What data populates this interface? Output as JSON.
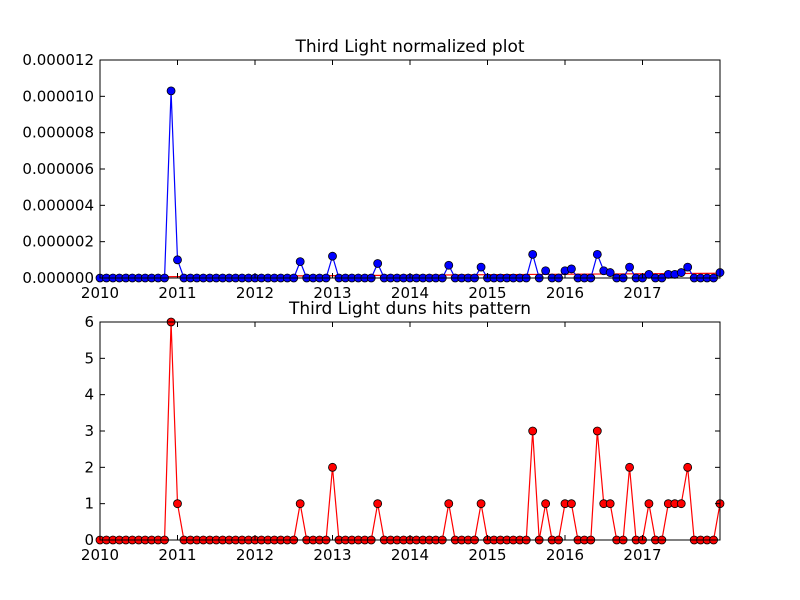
{
  "chart_data": [
    {
      "type": "line",
      "title": "Third Light normalized plot",
      "xlabel": "",
      "ylabel": "",
      "xlim": [
        2010.0,
        2018.0
      ],
      "ylim": [
        0,
        1.2e-05
      ],
      "grid": false,
      "x_ticks": [
        {
          "value": 2010,
          "label": "2010"
        },
        {
          "value": 2011,
          "label": "2011"
        },
        {
          "value": 2012,
          "label": "2012"
        },
        {
          "value": 2013,
          "label": "2013"
        },
        {
          "value": 2014,
          "label": "2014"
        },
        {
          "value": 2015,
          "label": "2015"
        },
        {
          "value": 2016,
          "label": "2016"
        },
        {
          "value": 2017,
          "label": "2017"
        }
      ],
      "y_ticks": [
        {
          "value": 0,
          "label": "0.000000"
        },
        {
          "value": 2e-06,
          "label": "0.000002"
        },
        {
          "value": 4e-06,
          "label": "0.000004"
        },
        {
          "value": 6e-06,
          "label": "0.000006"
        },
        {
          "value": 8e-06,
          "label": "0.000008"
        },
        {
          "value": 1e-05,
          "label": "0.000010"
        },
        {
          "value": 1.2e-05,
          "label": "0.000012"
        }
      ],
      "colors": {
        "series": "#0000ff",
        "marker": "#0000ff",
        "trend": "#ff0000"
      },
      "x": [
        2010.0,
        2010.083,
        2010.167,
        2010.25,
        2010.333,
        2010.417,
        2010.5,
        2010.583,
        2010.667,
        2010.75,
        2010.833,
        2010.917,
        2011.0,
        2011.083,
        2011.167,
        2011.25,
        2011.333,
        2011.417,
        2011.5,
        2011.583,
        2011.667,
        2011.75,
        2011.833,
        2011.917,
        2012.0,
        2012.083,
        2012.167,
        2012.25,
        2012.333,
        2012.417,
        2012.5,
        2012.583,
        2012.667,
        2012.75,
        2012.833,
        2012.917,
        2013.0,
        2013.083,
        2013.167,
        2013.25,
        2013.333,
        2013.417,
        2013.5,
        2013.583,
        2013.667,
        2013.75,
        2013.833,
        2013.917,
        2014.0,
        2014.083,
        2014.167,
        2014.25,
        2014.333,
        2014.417,
        2014.5,
        2014.583,
        2014.667,
        2014.75,
        2014.833,
        2014.917,
        2015.0,
        2015.083,
        2015.167,
        2015.25,
        2015.333,
        2015.417,
        2015.5,
        2015.583,
        2015.667,
        2015.75,
        2015.833,
        2015.917,
        2016.0,
        2016.083,
        2016.167,
        2016.25,
        2016.333,
        2016.417,
        2016.5,
        2016.583,
        2016.667,
        2016.75,
        2016.833,
        2016.917,
        2017.0,
        2017.083,
        2017.167,
        2017.25,
        2017.333,
        2017.417,
        2017.5,
        2017.583,
        2017.667,
        2017.75,
        2017.833,
        2017.917,
        2018.0
      ],
      "values": [
        0,
        0,
        0,
        0,
        0,
        0,
        0,
        0,
        0,
        0,
        0,
        1.03e-05,
        1e-06,
        0,
        0,
        0,
        0,
        0,
        0,
        0,
        0,
        0,
        0,
        0,
        0,
        0,
        0,
        0,
        0,
        0,
        0,
        9e-07,
        0,
        0,
        0,
        0,
        1.2e-06,
        0,
        0,
        0,
        0,
        0,
        0,
        8e-07,
        0,
        0,
        0,
        0,
        0,
        0,
        0,
        0,
        0,
        0,
        7e-07,
        0,
        0,
        0,
        0,
        6e-07,
        0,
        0,
        0,
        0,
        0,
        0,
        0,
        1.3e-06,
        0,
        4e-07,
        0,
        0,
        4e-07,
        5e-07,
        0,
        0,
        0,
        1.3e-06,
        4e-07,
        3e-07,
        0,
        0,
        6e-07,
        0,
        0,
        2e-07,
        0,
        0,
        2e-07,
        2e-07,
        3e-07,
        6e-07,
        0,
        0,
        0,
        0,
        3e-07
      ],
      "trend": {
        "x": [
          2010.0,
          2018.0
        ],
        "values": [
          5e-08,
          2.6e-07
        ]
      }
    },
    {
      "type": "line",
      "title": "Third Light duns hits pattern",
      "xlabel": "",
      "ylabel": "",
      "xlim": [
        2010.0,
        2018.0
      ],
      "ylim": [
        0,
        6
      ],
      "grid": false,
      "x_ticks": [
        {
          "value": 2010,
          "label": "2010"
        },
        {
          "value": 2011,
          "label": "2011"
        },
        {
          "value": 2012,
          "label": "2012"
        },
        {
          "value": 2013,
          "label": "2013"
        },
        {
          "value": 2014,
          "label": "2014"
        },
        {
          "value": 2015,
          "label": "2015"
        },
        {
          "value": 2016,
          "label": "2016"
        },
        {
          "value": 2017,
          "label": "2017"
        }
      ],
      "y_ticks": [
        {
          "value": 0,
          "label": "0"
        },
        {
          "value": 1,
          "label": "1"
        },
        {
          "value": 2,
          "label": "2"
        },
        {
          "value": 3,
          "label": "3"
        },
        {
          "value": 4,
          "label": "4"
        },
        {
          "value": 5,
          "label": "5"
        },
        {
          "value": 6,
          "label": "6"
        }
      ],
      "colors": {
        "series": "#ff0000",
        "marker": "#ff0000"
      },
      "x": [
        2010.0,
        2010.083,
        2010.167,
        2010.25,
        2010.333,
        2010.417,
        2010.5,
        2010.583,
        2010.667,
        2010.75,
        2010.833,
        2010.917,
        2011.0,
        2011.083,
        2011.167,
        2011.25,
        2011.333,
        2011.417,
        2011.5,
        2011.583,
        2011.667,
        2011.75,
        2011.833,
        2011.917,
        2012.0,
        2012.083,
        2012.167,
        2012.25,
        2012.333,
        2012.417,
        2012.5,
        2012.583,
        2012.667,
        2012.75,
        2012.833,
        2012.917,
        2013.0,
        2013.083,
        2013.167,
        2013.25,
        2013.333,
        2013.417,
        2013.5,
        2013.583,
        2013.667,
        2013.75,
        2013.833,
        2013.917,
        2014.0,
        2014.083,
        2014.167,
        2014.25,
        2014.333,
        2014.417,
        2014.5,
        2014.583,
        2014.667,
        2014.75,
        2014.833,
        2014.917,
        2015.0,
        2015.083,
        2015.167,
        2015.25,
        2015.333,
        2015.417,
        2015.5,
        2015.583,
        2015.667,
        2015.75,
        2015.833,
        2015.917,
        2016.0,
        2016.083,
        2016.167,
        2016.25,
        2016.333,
        2016.417,
        2016.5,
        2016.583,
        2016.667,
        2016.75,
        2016.833,
        2016.917,
        2017.0,
        2017.083,
        2017.167,
        2017.25,
        2017.333,
        2017.417,
        2017.5,
        2017.583,
        2017.667,
        2017.75,
        2017.833,
        2017.917,
        2018.0
      ],
      "values": [
        0,
        0,
        0,
        0,
        0,
        0,
        0,
        0,
        0,
        0,
        0,
        6,
        1,
        0,
        0,
        0,
        0,
        0,
        0,
        0,
        0,
        0,
        0,
        0,
        0,
        0,
        0,
        0,
        0,
        0,
        0,
        1,
        0,
        0,
        0,
        0,
        2,
        0,
        0,
        0,
        0,
        0,
        0,
        1,
        0,
        0,
        0,
        0,
        0,
        0,
        0,
        0,
        0,
        0,
        1,
        0,
        0,
        0,
        0,
        1,
        0,
        0,
        0,
        0,
        0,
        0,
        0,
        3,
        0,
        1,
        0,
        0,
        1,
        1,
        0,
        0,
        0,
        3,
        1,
        1,
        0,
        0,
        2,
        0,
        0,
        1,
        0,
        0,
        1,
        1,
        1,
        2,
        0,
        0,
        0,
        0,
        1
      ]
    }
  ]
}
